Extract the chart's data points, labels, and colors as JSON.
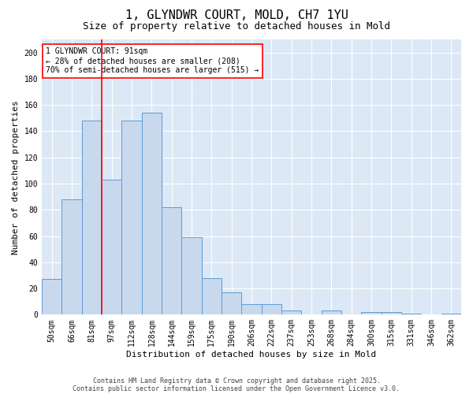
{
  "title1": "1, GLYNDWR COURT, MOLD, CH7 1YU",
  "title2": "Size of property relative to detached houses in Mold",
  "xlabel": "Distribution of detached houses by size in Mold",
  "ylabel": "Number of detached properties",
  "categories": [
    "50sqm",
    "66sqm",
    "81sqm",
    "97sqm",
    "112sqm",
    "128sqm",
    "144sqm",
    "159sqm",
    "175sqm",
    "190sqm",
    "206sqm",
    "222sqm",
    "237sqm",
    "253sqm",
    "268sqm",
    "284sqm",
    "300sqm",
    "315sqm",
    "331sqm",
    "346sqm",
    "362sqm"
  ],
  "values": [
    27,
    88,
    148,
    103,
    148,
    154,
    82,
    59,
    28,
    17,
    8,
    8,
    3,
    0,
    3,
    0,
    2,
    2,
    1,
    0,
    1
  ],
  "bar_color": "#c9d9ed",
  "bar_edge_color": "#5b9bd5",
  "background_color": "#dce8f5",
  "vline_color": "red",
  "annotation_line1": "1 GLYNDWR COURT: 91sqm",
  "annotation_line2": "← 28% of detached houses are smaller (208)",
  "annotation_line3": "70% of semi-detached houses are larger (515) →",
  "annotation_box_color": "white",
  "annotation_box_edge": "red",
  "ylim": [
    0,
    210
  ],
  "yticks": [
    0,
    20,
    40,
    60,
    80,
    100,
    120,
    140,
    160,
    180,
    200
  ],
  "footer1": "Contains HM Land Registry data © Crown copyright and database right 2025.",
  "footer2": "Contains public sector information licensed under the Open Government Licence v3.0.",
  "title_fontsize": 11,
  "subtitle_fontsize": 9,
  "axis_label_fontsize": 8,
  "tick_fontsize": 7,
  "annotation_fontsize": 7,
  "footer_fontsize": 6
}
